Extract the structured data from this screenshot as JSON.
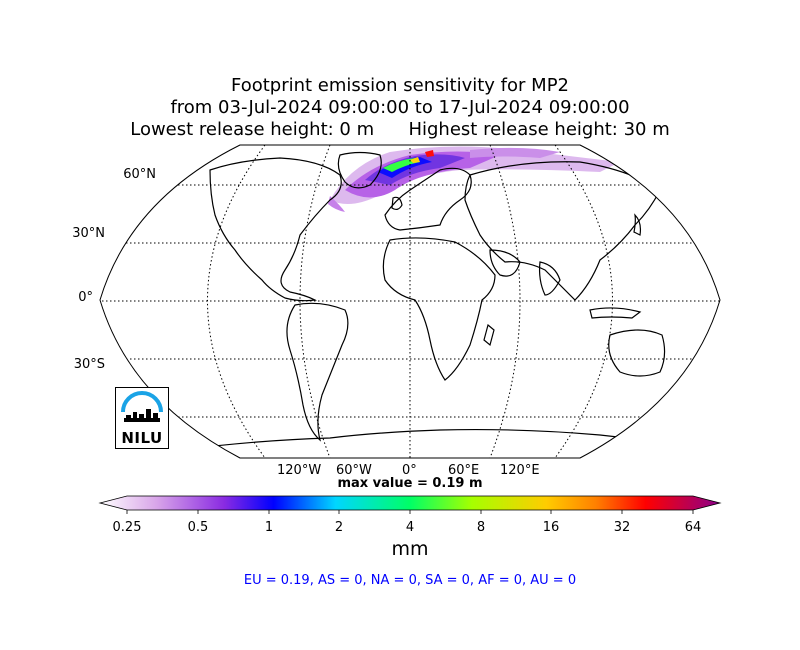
{
  "title": {
    "line1": "Footprint emission sensitivity for MP2",
    "line2": "from 03-Jul-2024 09:00:00 to 17-Jul-2024 09:00:00",
    "line3": "Lowest release height: 0 m      Highest release height: 30 m"
  },
  "map": {
    "projection": "robinson",
    "lat_labels": [
      "60°N",
      "30°N",
      "0°",
      "30°S"
    ],
    "lon_labels": [
      "120°W",
      "60°W",
      "0°",
      "60°E",
      "120°E"
    ],
    "max_value_text": "max value = 0.19 m",
    "plume_region": "Europe / North Atlantic",
    "colors": {
      "coastline": "#000000",
      "plume_core": "#2aff3a",
      "plume_edge": "#b45ae6"
    }
  },
  "colorbar": {
    "ticks": [
      "0.25",
      "0.5",
      "1",
      "2",
      "4",
      "8",
      "16",
      "32",
      "64"
    ],
    "unit": "mm",
    "colors": [
      "#ffffff",
      "#d9a6e9",
      "#8a2be2",
      "#0000ff",
      "#00d6ff",
      "#00ff66",
      "#a6ff00",
      "#ffcc00",
      "#ff8000",
      "#ff0000",
      "#8b008b"
    ]
  },
  "summary": "EU = 0.19,  AS = 0,  NA = 0,  SA = 0,  AF = 0,  AU = 0",
  "logo": {
    "text": "NILU",
    "icon": "nilu-logo-icon"
  }
}
